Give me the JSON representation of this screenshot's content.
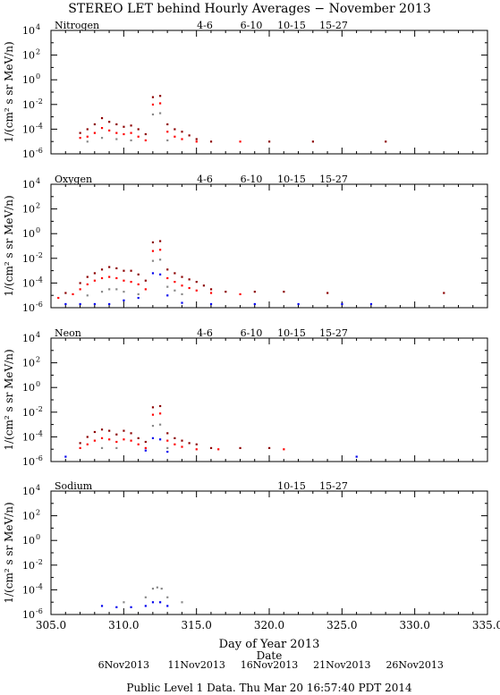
{
  "title": "STEREO LET behind Hourly Averages − November 2013",
  "xlabel": "Day of Year 2013",
  "ylabel": "1/(cm² s sr MeV/n)",
  "date_label": "Date",
  "footer": "Public Level 1 Data. Thu Mar 20 16:57:40 PDT 2014",
  "x_ticks": [
    "305.0",
    "310.0",
    "315.0",
    "320.0",
    "325.0",
    "330.0",
    "335.0"
  ],
  "date_ticks": [
    {
      "label": "6Nov2013",
      "doy": 310
    },
    {
      "label": "11Nov2013",
      "doy": 315
    },
    {
      "label": "16Nov2013",
      "doy": 320
    },
    {
      "label": "21Nov2013",
      "doy": 325
    },
    {
      "label": "26Nov2013",
      "doy": 330
    }
  ],
  "y_ticks": [
    {
      "exp": 4,
      "label": "10",
      "sup": "4"
    },
    {
      "exp": 2,
      "label": "10",
      "sup": "2"
    },
    {
      "exp": 0,
      "label": "10",
      "sup": "0"
    },
    {
      "exp": -2,
      "label": "10",
      "sup": "-2"
    },
    {
      "exp": -4,
      "label": "10",
      "sup": "-4"
    },
    {
      "exp": -6,
      "label": "10",
      "sup": "-6"
    }
  ],
  "colors": {
    "4-6": "#cc0000",
    "6-10": "#ff0000",
    "10-15": "#888888",
    "15-27": "#0000ee",
    "dark": "#8b0000"
  },
  "chart_data": [
    {
      "type": "scatter",
      "element": "Nitrogen",
      "xlim": [
        305,
        335
      ],
      "ylim_log10": [
        -6,
        4
      ],
      "y_scale": "log",
      "legend": [
        {
          "label": "4-6",
          "color": "#cc0000"
        },
        {
          "label": "6-10",
          "color": "#ff0000"
        },
        {
          "label": "10-15",
          "color": "#888888"
        },
        {
          "label": "15-27",
          "color": "#0000ee"
        }
      ],
      "series": [
        {
          "name": "4-6",
          "color": "#8b0000",
          "points": [
            [
              307.0,
              -4.3
            ],
            [
              307.5,
              -4.0
            ],
            [
              308.0,
              -3.6
            ],
            [
              308.5,
              -3.1
            ],
            [
              309.0,
              -3.4
            ],
            [
              309.5,
              -3.6
            ],
            [
              310.0,
              -3.8
            ],
            [
              310.5,
              -3.7
            ],
            [
              311.0,
              -4.0
            ],
            [
              311.5,
              -4.4
            ],
            [
              312.0,
              -1.4
            ],
            [
              312.5,
              -1.3
            ],
            [
              313.0,
              -3.6
            ],
            [
              313.5,
              -4.0
            ],
            [
              314.0,
              -4.2
            ],
            [
              314.5,
              -4.5
            ],
            [
              315.0,
              -4.8
            ],
            [
              316.0,
              -5.0
            ],
            [
              320.0,
              -5.0
            ],
            [
              323.0,
              -5.0
            ],
            [
              328.0,
              -5.0
            ]
          ]
        },
        {
          "name": "6-10",
          "color": "#ff0000",
          "points": [
            [
              307.0,
              -4.7
            ],
            [
              307.5,
              -4.6
            ],
            [
              308.0,
              -4.3
            ],
            [
              308.5,
              -3.9
            ],
            [
              309.0,
              -4.1
            ],
            [
              309.5,
              -4.3
            ],
            [
              310.0,
              -4.4
            ],
            [
              310.5,
              -4.3
            ],
            [
              311.0,
              -4.6
            ],
            [
              311.5,
              -4.9
            ],
            [
              312.0,
              -2.0
            ],
            [
              312.5,
              -1.9
            ],
            [
              313.0,
              -4.2
            ],
            [
              313.5,
              -4.6
            ],
            [
              314.0,
              -4.8
            ],
            [
              315.0,
              -5.0
            ],
            [
              318.0,
              -5.0
            ]
          ]
        },
        {
          "name": "10-15",
          "color": "#888888",
          "points": [
            [
              307.5,
              -5.0
            ],
            [
              308.5,
              -4.7
            ],
            [
              309.5,
              -4.8
            ],
            [
              310.5,
              -4.9
            ],
            [
              312.0,
              -2.8
            ],
            [
              312.5,
              -2.7
            ],
            [
              313.0,
              -4.9
            ]
          ]
        }
      ]
    },
    {
      "type": "scatter",
      "element": "Oxygen",
      "xlim": [
        305,
        335
      ],
      "ylim_log10": [
        -6,
        4
      ],
      "y_scale": "log",
      "legend": [
        {
          "label": "4-6",
          "color": "#cc0000"
        },
        {
          "label": "6-10",
          "color": "#ff0000"
        },
        {
          "label": "10-15",
          "color": "#888888"
        },
        {
          "label": "15-27",
          "color": "#0000ee"
        }
      ],
      "series": [
        {
          "name": "4-6",
          "color": "#8b0000",
          "points": [
            [
              306.0,
              -4.8
            ],
            [
              307.0,
              -4.0
            ],
            [
              307.5,
              -3.5
            ],
            [
              308.0,
              -3.2
            ],
            [
              308.5,
              -2.9
            ],
            [
              309.0,
              -2.7
            ],
            [
              309.5,
              -2.8
            ],
            [
              310.0,
              -3.0
            ],
            [
              310.5,
              -3.0
            ],
            [
              311.0,
              -3.3
            ],
            [
              311.5,
              -3.8
            ],
            [
              312.0,
              -0.7
            ],
            [
              312.5,
              -0.6
            ],
            [
              313.0,
              -2.9
            ],
            [
              313.5,
              -3.2
            ],
            [
              314.0,
              -3.5
            ],
            [
              314.5,
              -3.7
            ],
            [
              315.0,
              -3.9
            ],
            [
              315.5,
              -4.2
            ],
            [
              316.0,
              -4.5
            ],
            [
              317.0,
              -4.7
            ],
            [
              319.0,
              -4.7
            ],
            [
              321.0,
              -4.7
            ],
            [
              324.0,
              -4.8
            ],
            [
              332.0,
              -4.8
            ]
          ]
        },
        {
          "name": "6-10",
          "color": "#ff0000",
          "points": [
            [
              305.5,
              -5.2
            ],
            [
              306.5,
              -4.9
            ],
            [
              307.0,
              -4.5
            ],
            [
              307.5,
              -4.1
            ],
            [
              308.0,
              -3.8
            ],
            [
              308.5,
              -3.6
            ],
            [
              309.0,
              -3.5
            ],
            [
              309.5,
              -3.6
            ],
            [
              310.0,
              -3.8
            ],
            [
              310.5,
              -3.9
            ],
            [
              311.0,
              -4.1
            ],
            [
              311.5,
              -4.5
            ],
            [
              312.0,
              -1.4
            ],
            [
              312.5,
              -1.3
            ],
            [
              313.0,
              -3.6
            ],
            [
              313.5,
              -3.9
            ],
            [
              314.0,
              -4.2
            ],
            [
              314.5,
              -4.4
            ],
            [
              315.0,
              -4.6
            ],
            [
              316.0,
              -4.8
            ],
            [
              318.0,
              -4.9
            ]
          ]
        },
        {
          "name": "10-15",
          "color": "#888888",
          "points": [
            [
              307.5,
              -5.0
            ],
            [
              308.5,
              -4.7
            ],
            [
              309.0,
              -4.5
            ],
            [
              309.5,
              -4.5
            ],
            [
              310.0,
              -4.7
            ],
            [
              311.0,
              -4.9
            ],
            [
              312.0,
              -2.2
            ],
            [
              312.5,
              -2.1
            ],
            [
              313.0,
              -4.3
            ],
            [
              313.5,
              -4.6
            ],
            [
              314.0,
              -4.9
            ]
          ]
        },
        {
          "name": "15-27",
          "color": "#0000ee",
          "points": [
            [
              306.0,
              -5.7
            ],
            [
              307.0,
              -5.7
            ],
            [
              308.0,
              -5.7
            ],
            [
              309.0,
              -5.7
            ],
            [
              310.0,
              -5.4
            ],
            [
              311.0,
              -5.2
            ],
            [
              312.0,
              -3.2
            ],
            [
              312.5,
              -3.3
            ],
            [
              313.0,
              -5.0
            ],
            [
              314.0,
              -5.6
            ],
            [
              316.0,
              -5.7
            ],
            [
              319.0,
              -5.7
            ],
            [
              322.0,
              -5.7
            ],
            [
              325.0,
              -5.7
            ],
            [
              327.0,
              -5.7
            ]
          ]
        }
      ]
    },
    {
      "type": "scatter",
      "element": "Neon",
      "xlim": [
        305,
        335
      ],
      "ylim_log10": [
        -6,
        4
      ],
      "y_scale": "log",
      "legend": [
        {
          "label": "4-6",
          "color": "#cc0000"
        },
        {
          "label": "6-10",
          "color": "#ff0000"
        },
        {
          "label": "10-15",
          "color": "#888888"
        },
        {
          "label": "15-27",
          "color": "#0000ee"
        }
      ],
      "series": [
        {
          "name": "4-6",
          "color": "#8b0000",
          "points": [
            [
              307.0,
              -4.5
            ],
            [
              307.5,
              -4.0
            ],
            [
              308.0,
              -3.6
            ],
            [
              308.5,
              -3.4
            ],
            [
              309.0,
              -3.5
            ],
            [
              309.5,
              -3.8
            ],
            [
              310.0,
              -3.5
            ],
            [
              310.5,
              -3.7
            ],
            [
              311.0,
              -4.1
            ],
            [
              311.5,
              -4.4
            ],
            [
              312.0,
              -1.6
            ],
            [
              312.5,
              -1.5
            ],
            [
              313.0,
              -3.7
            ],
            [
              313.5,
              -4.1
            ],
            [
              314.0,
              -4.3
            ],
            [
              314.5,
              -4.5
            ],
            [
              315.0,
              -4.6
            ],
            [
              316.0,
              -4.9
            ],
            [
              318.0,
              -4.9
            ],
            [
              320.0,
              -4.9
            ]
          ]
        },
        {
          "name": "6-10",
          "color": "#ff0000",
          "points": [
            [
              307.0,
              -4.9
            ],
            [
              307.5,
              -4.6
            ],
            [
              308.0,
              -4.3
            ],
            [
              308.5,
              -4.1
            ],
            [
              309.0,
              -4.2
            ],
            [
              309.5,
              -4.4
            ],
            [
              310.0,
              -4.2
            ],
            [
              310.5,
              -4.3
            ],
            [
              311.0,
              -4.6
            ],
            [
              311.5,
              -4.9
            ],
            [
              312.0,
              -2.2
            ],
            [
              312.5,
              -2.1
            ],
            [
              313.0,
              -4.3
            ],
            [
              313.5,
              -4.6
            ],
            [
              314.0,
              -4.8
            ],
            [
              315.0,
              -5.0
            ],
            [
              316.5,
              -5.0
            ],
            [
              321.0,
              -5.0
            ]
          ]
        },
        {
          "name": "10-15",
          "color": "#888888",
          "points": [
            [
              308.5,
              -4.9
            ],
            [
              309.5,
              -4.9
            ],
            [
              312.0,
              -3.1
            ],
            [
              312.5,
              -3.0
            ],
            [
              313.0,
              -4.9
            ]
          ]
        },
        {
          "name": "15-27",
          "color": "#0000ee",
          "points": [
            [
              306.0,
              -5.6
            ],
            [
              311.5,
              -5.1
            ],
            [
              312.0,
              -4.1
            ],
            [
              312.5,
              -4.2
            ],
            [
              313.0,
              -5.2
            ],
            [
              326.0,
              -5.6
            ]
          ]
        }
      ]
    },
    {
      "type": "scatter",
      "element": "Sodium",
      "xlim": [
        305,
        335
      ],
      "ylim_log10": [
        -6,
        4
      ],
      "y_scale": "log",
      "legend": [
        {
          "label": "10-15",
          "color": "#888888"
        },
        {
          "label": "15-27",
          "color": "#0000ee"
        }
      ],
      "series": [
        {
          "name": "10-15",
          "color": "#888888",
          "points": [
            [
              310.0,
              -5.0
            ],
            [
              311.5,
              -4.6
            ],
            [
              312.0,
              -3.9
            ],
            [
              312.3,
              -3.8
            ],
            [
              312.6,
              -3.9
            ],
            [
              313.0,
              -4.6
            ],
            [
              314.0,
              -5.0
            ]
          ]
        },
        {
          "name": "15-27",
          "color": "#0000ee",
          "points": [
            [
              308.5,
              -5.3
            ],
            [
              309.5,
              -5.4
            ],
            [
              310.5,
              -5.4
            ],
            [
              311.5,
              -5.3
            ],
            [
              312.0,
              -5.0
            ],
            [
              312.5,
              -5.0
            ],
            [
              313.0,
              -5.3
            ]
          ]
        }
      ]
    }
  ]
}
